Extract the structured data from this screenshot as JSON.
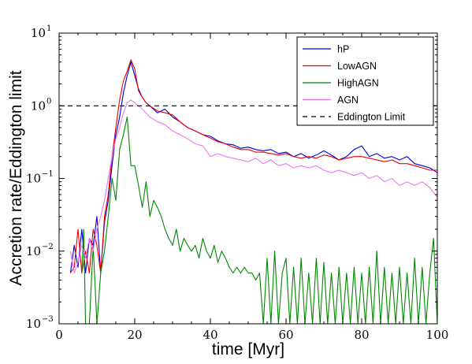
{
  "chart_data": {
    "type": "line",
    "xlabel": "time [Myr]",
    "ylabel": "Accretion rate/Eddington limit",
    "xlim": [
      0,
      100
    ],
    "ylim": [
      0.001,
      10
    ],
    "yscale": "log",
    "xticks": [
      "0",
      "20",
      "40",
      "60",
      "80",
      "100"
    ],
    "xtick_values": [
      0,
      20,
      40,
      60,
      80,
      100
    ],
    "yticks": [
      {
        "base": "10",
        "exp": "−3",
        "value": 0.001
      },
      {
        "base": "10",
        "exp": "−2",
        "value": 0.01
      },
      {
        "base": "10",
        "exp": "−1",
        "value": 0.1
      },
      {
        "base": "10",
        "exp": "0",
        "value": 1
      },
      {
        "base": "10",
        "exp": "1",
        "value": 10
      }
    ],
    "grid": false,
    "legend_position": "top-right",
    "series": [
      {
        "name": "hP",
        "color": "#0000dd",
        "style": "solid",
        "x": [
          3,
          4,
          5,
          6,
          7,
          8,
          9,
          10,
          11,
          12,
          13,
          14,
          15,
          16,
          17,
          18,
          19,
          20,
          21,
          22,
          23,
          24,
          26,
          28,
          30,
          32,
          34,
          36,
          38,
          40,
          42,
          44,
          46,
          48,
          50,
          52,
          54,
          56,
          58,
          60,
          62,
          64,
          66,
          68,
          70,
          72,
          74,
          76,
          78,
          80,
          82,
          84,
          86,
          88,
          90,
          92,
          94,
          96,
          98,
          100
        ],
        "y": [
          0.005,
          0.012,
          0.006,
          0.02,
          0.005,
          0.015,
          0.012,
          0.03,
          0.005,
          0.025,
          0.05,
          0.15,
          0.4,
          0.7,
          1.5,
          2.6,
          4.0,
          2.6,
          1.7,
          1.3,
          1.1,
          1.0,
          0.8,
          0.9,
          0.7,
          0.6,
          0.5,
          0.45,
          0.4,
          0.38,
          0.33,
          0.3,
          0.29,
          0.26,
          0.27,
          0.25,
          0.24,
          0.25,
          0.22,
          0.23,
          0.2,
          0.22,
          0.19,
          0.21,
          0.24,
          0.21,
          0.18,
          0.2,
          0.25,
          0.28,
          0.2,
          0.22,
          0.19,
          0.2,
          0.18,
          0.2,
          0.16,
          0.15,
          0.14,
          0.12
        ]
      },
      {
        "name": "LowAGN",
        "color": "#ee0000",
        "style": "solid",
        "x": [
          3,
          4,
          5,
          6,
          7,
          8,
          9,
          10,
          11,
          12,
          13,
          14,
          15,
          16,
          17,
          18,
          19,
          20,
          21,
          22,
          23,
          24,
          26,
          28,
          30,
          32,
          34,
          36,
          38,
          40,
          42,
          44,
          46,
          48,
          50,
          52,
          54,
          56,
          58,
          60,
          62,
          64,
          66,
          68,
          70,
          72,
          74,
          76,
          78,
          80,
          82,
          84,
          86,
          88,
          90,
          92,
          94,
          96,
          98,
          100
        ],
        "y": [
          0.005,
          0.006,
          0.02,
          0.005,
          0.01,
          0.005,
          0.02,
          0.012,
          0.005,
          0.03,
          0.06,
          0.2,
          0.5,
          1.2,
          2.2,
          3.0,
          4.3,
          3.2,
          1.6,
          1.3,
          1.1,
          1.0,
          0.85,
          0.8,
          0.75,
          0.6,
          0.5,
          0.45,
          0.4,
          0.36,
          0.32,
          0.3,
          0.27,
          0.25,
          0.25,
          0.23,
          0.23,
          0.22,
          0.21,
          0.22,
          0.2,
          0.19,
          0.2,
          0.19,
          0.21,
          0.2,
          0.18,
          0.19,
          0.2,
          0.2,
          0.19,
          0.18,
          0.17,
          0.18,
          0.16,
          0.16,
          0.15,
          0.14,
          0.13,
          0.13
        ]
      },
      {
        "name": "HighAGN",
        "color": "#008800",
        "style": "solid",
        "x": [
          6,
          6.5,
          7,
          8,
          9,
          10,
          11,
          12,
          13,
          14,
          15,
          16,
          17,
          18,
          19,
          20,
          21,
          22,
          23,
          24,
          25,
          26,
          27,
          28,
          29,
          30,
          31,
          32,
          33,
          34,
          35,
          36,
          37,
          38,
          39,
          40,
          41,
          42,
          43,
          44,
          45,
          46,
          47,
          48,
          49,
          50,
          51,
          52,
          53,
          54,
          55,
          56,
          57,
          58,
          59,
          60,
          61,
          62,
          63,
          64,
          65,
          66,
          67,
          68,
          69,
          70,
          71,
          72,
          73,
          74,
          75,
          76,
          77,
          78,
          79,
          80,
          81,
          82,
          83,
          84,
          85,
          86,
          87,
          88,
          89,
          90,
          91,
          92,
          93,
          94,
          95,
          96,
          97,
          98,
          99,
          100
        ],
        "y": [
          0.005,
          0.02,
          0.001,
          0.001,
          0.012,
          0.001,
          0.005,
          0.01,
          0.03,
          0.1,
          0.05,
          0.25,
          0.4,
          0.7,
          0.15,
          0.15,
          0.08,
          0.04,
          0.09,
          0.03,
          0.05,
          0.04,
          0.03,
          0.02,
          0.015,
          0.012,
          0.02,
          0.01,
          0.015,
          0.012,
          0.01,
          0.012,
          0.008,
          0.015,
          0.01,
          0.008,
          0.012,
          0.007,
          0.01,
          0.008,
          0.006,
          0.005,
          0.006,
          0.005,
          0.006,
          0.005,
          0.005,
          0.004,
          0.005,
          0.001,
          0.008,
          0.001,
          0.01,
          0.001,
          0.005,
          0.008,
          0.001,
          0.006,
          0.001,
          0.008,
          0.001,
          0.005,
          0.001,
          0.008,
          0.001,
          0.007,
          0.001,
          0.005,
          0.001,
          0.006,
          0.001,
          0.005,
          0.001,
          0.006,
          0.001,
          0.005,
          0.001,
          0.006,
          0.001,
          0.01,
          0.001,
          0.006,
          0.001,
          0.005,
          0.001,
          0.006,
          0.001,
          0.005,
          0.001,
          0.008,
          0.001,
          0.006,
          0.001,
          0.005,
          0.015,
          0.001
        ]
      },
      {
        "name": "AGN",
        "color": "#ee77ee",
        "style": "solid",
        "x": [
          3,
          4,
          5,
          6,
          7,
          8,
          9,
          10,
          11,
          12,
          13,
          14,
          15,
          16,
          17,
          18,
          19,
          20,
          22,
          24,
          26,
          28,
          30,
          32,
          34,
          36,
          38,
          40,
          42,
          44,
          46,
          48,
          50,
          52,
          54,
          56,
          58,
          60,
          62,
          64,
          66,
          68,
          70,
          72,
          74,
          76,
          78,
          80,
          82,
          84,
          86,
          88,
          90,
          92,
          94,
          96,
          98,
          100
        ],
        "y": [
          0.01,
          0.005,
          0.007,
          0.012,
          0.008,
          0.015,
          0.01,
          0.02,
          0.03,
          0.05,
          0.1,
          0.2,
          0.35,
          0.5,
          0.8,
          1.1,
          1.2,
          1.1,
          0.9,
          0.7,
          0.6,
          0.55,
          0.45,
          0.4,
          0.35,
          0.3,
          0.28,
          0.2,
          0.22,
          0.2,
          0.19,
          0.18,
          0.17,
          0.19,
          0.16,
          0.18,
          0.15,
          0.16,
          0.14,
          0.15,
          0.14,
          0.15,
          0.13,
          0.12,
          0.13,
          0.12,
          0.11,
          0.12,
          0.1,
          0.11,
          0.09,
          0.1,
          0.08,
          0.09,
          0.08,
          0.09,
          0.075,
          0.055
        ]
      },
      {
        "name": "Eddington Limit",
        "color": "#000000",
        "style": "dashed",
        "x": [
          0,
          100
        ],
        "y": [
          1,
          1
        ]
      }
    ]
  }
}
